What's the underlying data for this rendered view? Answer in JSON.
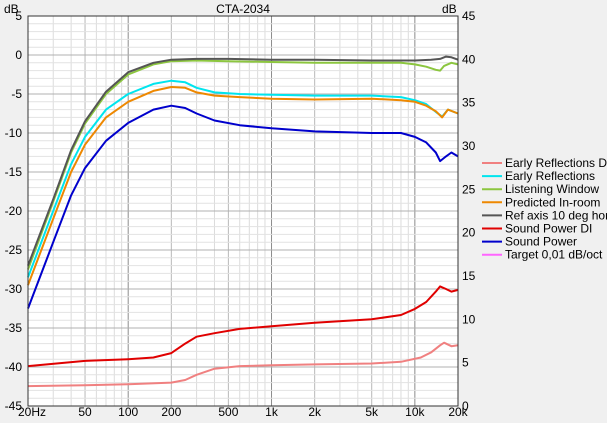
{
  "chart_data": {
    "type": "line",
    "title": "CTA-2034",
    "y_left_unit": "dB",
    "y_right_unit": "dB",
    "x_scale": "log",
    "xlim": [
      20,
      20000
    ],
    "ylim_left": [
      -45,
      5
    ],
    "ylim_right": [
      0,
      45
    ],
    "grid": true,
    "legend_position": "right",
    "x_tick_labels": [
      {
        "v": 20,
        "t": "20Hz"
      },
      {
        "v": 50,
        "t": "50"
      },
      {
        "v": 100,
        "t": "100"
      },
      {
        "v": 200,
        "t": "200"
      },
      {
        "v": 500,
        "t": "500"
      },
      {
        "v": 1000,
        "t": "1k"
      },
      {
        "v": 2000,
        "t": "2k"
      },
      {
        "v": 5000,
        "t": "5k"
      },
      {
        "v": 10000,
        "t": "10k"
      },
      {
        "v": 20000,
        "t": "20k"
      }
    ],
    "y_left_ticks": [
      5,
      0,
      -5,
      -10,
      -15,
      -20,
      -25,
      -30,
      -35,
      -40,
      -45
    ],
    "y_right_ticks": [
      45,
      40,
      35,
      30,
      25,
      20,
      15,
      10,
      5,
      0
    ],
    "series": [
      {
        "name": "Early Reflections DI",
        "color": "#f08080",
        "axis": "right",
        "points": [
          [
            20,
            2.3
          ],
          [
            50,
            2.4
          ],
          [
            100,
            2.5
          ],
          [
            200,
            2.7
          ],
          [
            250,
            3.0
          ],
          [
            300,
            3.6
          ],
          [
            400,
            4.3
          ],
          [
            600,
            4.6
          ],
          [
            1000,
            4.7
          ],
          [
            2000,
            4.8
          ],
          [
            5000,
            4.9
          ],
          [
            8000,
            5.1
          ],
          [
            11000,
            5.6
          ],
          [
            13000,
            6.2
          ],
          [
            15000,
            7.0
          ],
          [
            16000,
            7.3
          ],
          [
            18000,
            6.9
          ],
          [
            20000,
            7.0
          ]
        ]
      },
      {
        "name": "Early Reflections",
        "color": "#00e5ee",
        "axis": "left",
        "points": [
          [
            20,
            -28.5
          ],
          [
            30,
            -20
          ],
          [
            40,
            -14
          ],
          [
            50,
            -10.5
          ],
          [
            70,
            -7
          ],
          [
            100,
            -5
          ],
          [
            150,
            -3.7
          ],
          [
            200,
            -3.3
          ],
          [
            250,
            -3.5
          ],
          [
            300,
            -4.2
          ],
          [
            400,
            -4.8
          ],
          [
            600,
            -5
          ],
          [
            1000,
            -5.1
          ],
          [
            2000,
            -5.2
          ],
          [
            5000,
            -5.2
          ],
          [
            8000,
            -5.4
          ],
          [
            10000,
            -5.8
          ],
          [
            12000,
            -6.3
          ],
          [
            14000,
            -7.3
          ],
          [
            15500,
            -7.9
          ],
          [
            17000,
            -7.0
          ],
          [
            20000,
            -7.5
          ]
        ]
      },
      {
        "name": "Listening Window",
        "color": "#8cc63f",
        "axis": "left",
        "points": [
          [
            20,
            -27.5
          ],
          [
            30,
            -18.8
          ],
          [
            40,
            -12.5
          ],
          [
            50,
            -8.8
          ],
          [
            70,
            -5
          ],
          [
            100,
            -2.5
          ],
          [
            150,
            -1.2
          ],
          [
            200,
            -0.8
          ],
          [
            300,
            -0.7
          ],
          [
            500,
            -0.8
          ],
          [
            1000,
            -0.9
          ],
          [
            2000,
            -1.0
          ],
          [
            5000,
            -1.0
          ],
          [
            8000,
            -1.0
          ],
          [
            10000,
            -1.2
          ],
          [
            12000,
            -1.5
          ],
          [
            14000,
            -1.9
          ],
          [
            15000,
            -2.0
          ],
          [
            16000,
            -1.4
          ],
          [
            18000,
            -1.0
          ],
          [
            20000,
            -1.2
          ]
        ]
      },
      {
        "name": "Predicted In-room",
        "color": "#ee8800",
        "axis": "left",
        "points": [
          [
            20,
            -29.5
          ],
          [
            30,
            -21
          ],
          [
            40,
            -15
          ],
          [
            50,
            -11.5
          ],
          [
            70,
            -8
          ],
          [
            100,
            -6
          ],
          [
            150,
            -4.6
          ],
          [
            200,
            -4.1
          ],
          [
            250,
            -4.2
          ],
          [
            300,
            -4.8
          ],
          [
            400,
            -5.2
          ],
          [
            600,
            -5.4
          ],
          [
            1000,
            -5.6
          ],
          [
            2000,
            -5.7
          ],
          [
            5000,
            -5.6
          ],
          [
            8000,
            -5.8
          ],
          [
            10000,
            -6.0
          ],
          [
            12000,
            -6.5
          ],
          [
            14000,
            -7.2
          ],
          [
            15500,
            -8.0
          ],
          [
            17000,
            -7.0
          ],
          [
            20000,
            -7.5
          ]
        ]
      },
      {
        "name": "Ref axis 10 deg hor",
        "color": "#555555",
        "axis": "left",
        "points": [
          [
            20,
            -27
          ],
          [
            30,
            -18.5
          ],
          [
            40,
            -12.2
          ],
          [
            50,
            -8.5
          ],
          [
            70,
            -4.7
          ],
          [
            100,
            -2.2
          ],
          [
            150,
            -1.0
          ],
          [
            200,
            -0.6
          ],
          [
            300,
            -0.5
          ],
          [
            500,
            -0.5
          ],
          [
            1000,
            -0.6
          ],
          [
            2000,
            -0.6
          ],
          [
            5000,
            -0.7
          ],
          [
            8000,
            -0.7
          ],
          [
            10000,
            -0.7
          ],
          [
            13000,
            -0.6
          ],
          [
            15000,
            -0.5
          ],
          [
            16500,
            -0.2
          ],
          [
            18000,
            -0.3
          ],
          [
            20000,
            -0.6
          ]
        ]
      },
      {
        "name": "Sound Power DI",
        "color": "#e00000",
        "axis": "right",
        "points": [
          [
            20,
            4.6
          ],
          [
            50,
            5.2
          ],
          [
            100,
            5.4
          ],
          [
            150,
            5.6
          ],
          [
            200,
            6.1
          ],
          [
            250,
            7.2
          ],
          [
            300,
            8.0
          ],
          [
            400,
            8.4
          ],
          [
            600,
            8.9
          ],
          [
            1000,
            9.2
          ],
          [
            2000,
            9.6
          ],
          [
            5000,
            10.0
          ],
          [
            8000,
            10.5
          ],
          [
            10000,
            11.2
          ],
          [
            12000,
            12.0
          ],
          [
            14000,
            13.2
          ],
          [
            15000,
            13.8
          ],
          [
            16500,
            13.5
          ],
          [
            18000,
            13.2
          ],
          [
            20000,
            13.4
          ]
        ]
      },
      {
        "name": "Sound Power",
        "color": "#0000cc",
        "axis": "left",
        "points": [
          [
            20,
            -32.5
          ],
          [
            30,
            -24
          ],
          [
            40,
            -18
          ],
          [
            50,
            -14.5
          ],
          [
            70,
            -11
          ],
          [
            100,
            -8.7
          ],
          [
            150,
            -7
          ],
          [
            200,
            -6.5
          ],
          [
            250,
            -6.8
          ],
          [
            300,
            -7.5
          ],
          [
            400,
            -8.4
          ],
          [
            600,
            -9
          ],
          [
            1000,
            -9.4
          ],
          [
            2000,
            -9.8
          ],
          [
            5000,
            -10
          ],
          [
            8000,
            -10
          ],
          [
            10000,
            -10.5
          ],
          [
            12000,
            -11.2
          ],
          [
            14000,
            -12.5
          ],
          [
            15000,
            -13.6
          ],
          [
            16500,
            -13.0
          ],
          [
            18000,
            -12.5
          ],
          [
            20000,
            -13.0
          ]
        ]
      },
      {
        "name": "Target 0,01 dB/oct",
        "color": "#ff66ff",
        "axis": "left",
        "points": []
      }
    ]
  }
}
